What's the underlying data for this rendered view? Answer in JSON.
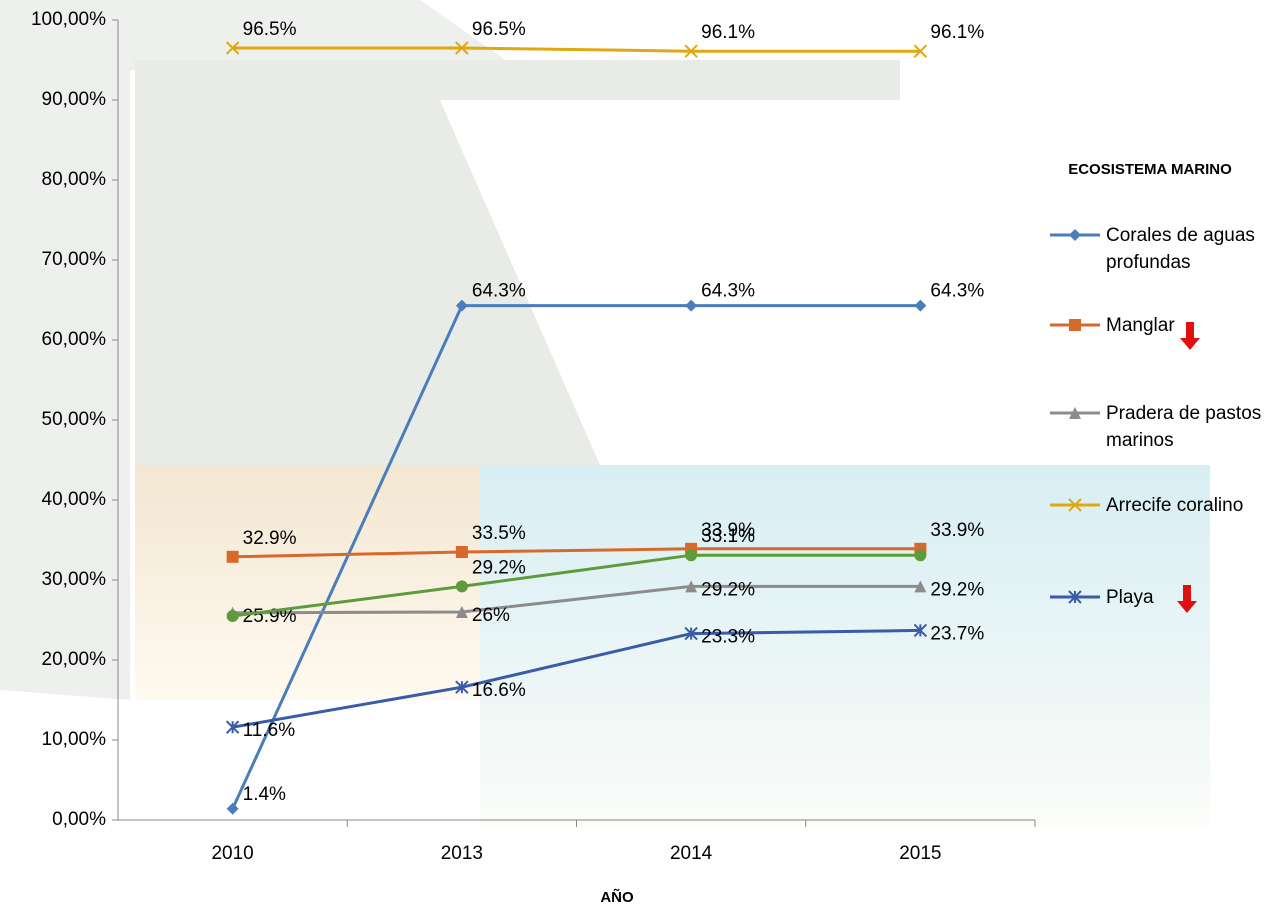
{
  "chart_data": {
    "type": "line",
    "categories": [
      "2010",
      "2013",
      "2014",
      "2015"
    ],
    "x_label": "AÑO",
    "legend_title": "ECOSISTEMA MARINO",
    "ylim": [
      0,
      100
    ],
    "yticks": [
      {
        "value": 0,
        "label": "0,00%"
      },
      {
        "value": 10,
        "label": "10,00%"
      },
      {
        "value": 20,
        "label": "20,00%"
      },
      {
        "value": 30,
        "label": "30,00%"
      },
      {
        "value": 40,
        "label": "40,00%"
      },
      {
        "value": 50,
        "label": "50,00%"
      },
      {
        "value": 60,
        "label": "60,00%"
      },
      {
        "value": 70,
        "label": "70,00%"
      },
      {
        "value": 80,
        "label": "80,00%"
      },
      {
        "value": 90,
        "label": "90,00%"
      },
      {
        "value": 100,
        "label": "100,00%"
      }
    ],
    "series": [
      {
        "name": "Corales de aguas profundas",
        "color": "#4a7ebb",
        "marker": "diamond",
        "values": [
          1.4,
          64.3,
          64.3,
          64.3
        ],
        "value_labels": [
          "1.4%",
          "64.3%",
          "64.3%",
          "64.3%"
        ]
      },
      {
        "name": "Manglar",
        "color": "#d8692c",
        "marker": "square",
        "values": [
          32.9,
          33.5,
          33.9,
          33.9
        ],
        "value_labels": [
          "32.9%",
          "33.5%",
          "33.9%",
          "33.9%"
        ]
      },
      {
        "name": "Pradera de pastos marinos",
        "color": "#8c8c8c",
        "marker": "triangle",
        "values": [
          25.9,
          26,
          29.2,
          29.2
        ],
        "value_labels": [
          "25.9%",
          "26%",
          "29.2%",
          "29.2%"
        ]
      },
      {
        "name": "Arrecife coralino",
        "color": "#e0a810",
        "marker": "x",
        "values": [
          96.5,
          96.5,
          96.1,
          96.1
        ],
        "value_labels": [
          "96.5%",
          "96.5%",
          "96.1%",
          "96.1%"
        ]
      },
      {
        "name": "Playa",
        "color": "#3a5ba8",
        "marker": "star",
        "values": [
          11.6,
          16.6,
          23.3,
          23.7
        ],
        "value_labels": [
          "11.6%",
          "16.6%",
          "23.3%",
          "23.7%"
        ]
      },
      {
        "color": "#5e9b3a",
        "marker": "circle",
        "values": [
          25.5,
          29.2,
          33.1,
          33.1
        ],
        "value_labels": [
          null,
          "29.2%",
          "33.1%",
          null
        ]
      }
    ]
  }
}
